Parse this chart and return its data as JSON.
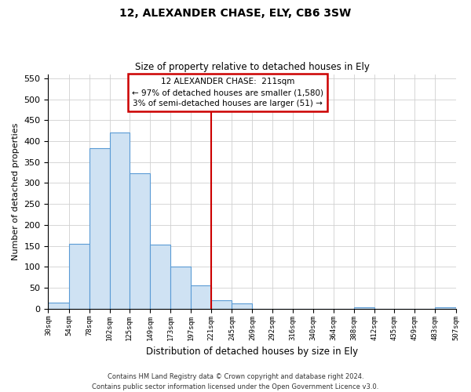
{
  "title": "12, ALEXANDER CHASE, ELY, CB6 3SW",
  "subtitle": "Size of property relative to detached houses in Ely",
  "xlabel": "Distribution of detached houses by size in Ely",
  "ylabel": "Number of detached properties",
  "bar_edges": [
    30,
    54,
    78,
    102,
    125,
    149,
    173,
    197,
    221,
    245,
    269,
    292,
    316,
    340,
    364,
    388,
    412,
    435,
    459,
    483,
    507
  ],
  "bar_heights": [
    15,
    155,
    383,
    420,
    323,
    153,
    100,
    55,
    20,
    12,
    0,
    0,
    0,
    0,
    0,
    3,
    0,
    0,
    0,
    3
  ],
  "bar_color": "#cfe2f3",
  "bar_edge_color": "#5b9bd5",
  "marker_x": 221,
  "marker_color": "#cc0000",
  "ylim": [
    0,
    560
  ],
  "xlim": [
    30,
    507
  ],
  "annotation_title": "12 ALEXANDER CHASE:  211sqm",
  "annotation_line1": "← 97% of detached houses are smaller (1,580)",
  "annotation_line2": "3% of semi-detached houses are larger (51) →",
  "annotation_box_color": "#ffffff",
  "annotation_border_color": "#cc0000",
  "footer_line1": "Contains HM Land Registry data © Crown copyright and database right 2024.",
  "footer_line2": "Contains public sector information licensed under the Open Government Licence v3.0.",
  "tick_labels": [
    "30sqm",
    "54sqm",
    "78sqm",
    "102sqm",
    "125sqm",
    "149sqm",
    "173sqm",
    "197sqm",
    "221sqm",
    "245sqm",
    "269sqm",
    "292sqm",
    "316sqm",
    "340sqm",
    "364sqm",
    "388sqm",
    "412sqm",
    "435sqm",
    "459sqm",
    "483sqm",
    "507sqm"
  ],
  "yticks": [
    0,
    50,
    100,
    150,
    200,
    250,
    300,
    350,
    400,
    450,
    500,
    550
  ],
  "background_color": "#ffffff",
  "grid_color": "#d0d0d0"
}
